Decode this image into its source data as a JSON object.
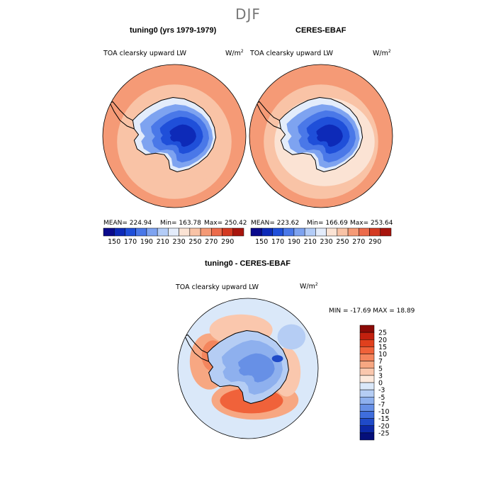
{
  "season": "DJF",
  "panels": [
    {
      "title": "tuning0 (yrs 1979-1979)",
      "variable": "TOA clearsky upward LW",
      "units_base": "W/m",
      "units_exp": "2",
      "mean_label": "MEAN= 224.94",
      "min_label": "Min= 163.78",
      "max_label": "Max= 250.42"
    },
    {
      "title": "CERES-EBAF",
      "variable": "TOA clearsky upward LW",
      "units_base": "W/m",
      "units_exp": "2",
      "mean_label": "MEAN= 223.62",
      "min_label": "Min= 166.69",
      "max_label": "Max= 253.64"
    },
    {
      "title": "tuning0 - CERES-EBAF",
      "variable": "TOA clearsky upward LW",
      "units_base": "W/m",
      "units_exp": "2",
      "minmax_label": "MIN = -17.69 MAX =  18.89"
    }
  ],
  "colorbars": {
    "abs_levels": [
      "150",
      "170",
      "190",
      "210",
      "230",
      "250",
      "270",
      "290"
    ],
    "abs_colors": [
      "#0a0a8c",
      "#0d2ab8",
      "#1f4fd9",
      "#4a78e8",
      "#7ea3f0",
      "#b3ccf7",
      "#e3ecfb",
      "#fbe3d4",
      "#f9c3a6",
      "#f59a76",
      "#ec6b4b",
      "#d43a22",
      "#a8150d"
    ],
    "diff_levels": [
      "25",
      "20",
      "15",
      "10",
      "7",
      "5",
      "3",
      "0",
      "-3",
      "-5",
      "-7",
      "-10",
      "-15",
      "-20",
      "-25"
    ],
    "diff_colors": [
      "#8b0a07",
      "#c2200e",
      "#e0401d",
      "#f0623a",
      "#f4855d",
      "#f7a782",
      "#fac7ad",
      "#fde9dc",
      "#dae8f9",
      "#b5cdf4",
      "#8eb0ee",
      "#6790e6",
      "#3f6ddc",
      "#1f4ac8",
      "#0c28a6",
      "#050f7a"
    ]
  },
  "chart_data": [
    {
      "type": "heatmap",
      "title": "tuning0 (yrs 1979-1979)",
      "subtitle": "TOA clearsky upward LW",
      "units": "W/m2",
      "projection": "south polar stereographic",
      "mean": 224.94,
      "min": 163.78,
      "max": 250.42,
      "levels": [
        150,
        160,
        170,
        180,
        190,
        200,
        210,
        220,
        230,
        240,
        250,
        260,
        270,
        280,
        290
      ]
    },
    {
      "type": "heatmap",
      "title": "CERES-EBAF",
      "subtitle": "TOA clearsky upward LW",
      "units": "W/m2",
      "projection": "south polar stereographic",
      "mean": 223.62,
      "min": 166.69,
      "max": 253.64,
      "levels": [
        150,
        160,
        170,
        180,
        190,
        200,
        210,
        220,
        230,
        240,
        250,
        260,
        270,
        280,
        290
      ]
    },
    {
      "type": "heatmap",
      "title": "tuning0 - CERES-EBAF",
      "subtitle": "TOA clearsky upward LW",
      "units": "W/m2",
      "projection": "south polar stereographic",
      "min": -17.69,
      "max": 18.89,
      "levels": [
        -25,
        -20,
        -15,
        -10,
        -7,
        -5,
        -3,
        0,
        3,
        5,
        7,
        10,
        15,
        20,
        25
      ]
    }
  ]
}
